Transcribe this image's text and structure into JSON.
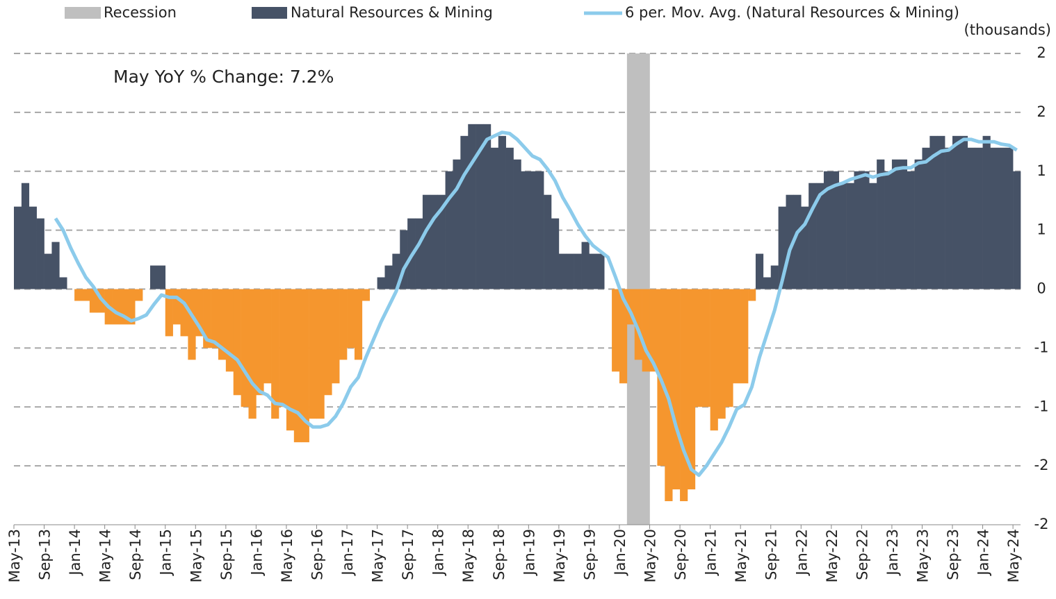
{
  "chart_data": {
    "type": "bar",
    "annotation": "May YoY % Change: 7.2%",
    "unit_label": "(thousands)",
    "categories": [
      "May-13",
      null,
      null,
      null,
      "Sep-13",
      null,
      null,
      null,
      "Jan-14",
      null,
      null,
      null,
      "May-14",
      null,
      null,
      null,
      "Sep-14",
      null,
      null,
      null,
      "Jan-15",
      null,
      null,
      null,
      "May-15",
      null,
      null,
      null,
      "Sep-15",
      null,
      null,
      null,
      "Jan-16",
      null,
      null,
      null,
      "May-16",
      null,
      null,
      null,
      "Sep-16",
      null,
      null,
      null,
      "Jan-17",
      null,
      null,
      null,
      "May-17",
      null,
      null,
      null,
      "Sep-17",
      null,
      null,
      null,
      "Jan-18",
      null,
      null,
      null,
      "May-18",
      null,
      null,
      null,
      "Sep-18",
      null,
      null,
      null,
      "Jan-19",
      null,
      null,
      null,
      "May-19",
      null,
      null,
      null,
      "Sep-19",
      null,
      null,
      null,
      "Jan-20",
      null,
      null,
      null,
      "May-20",
      null,
      null,
      null,
      "Sep-20",
      null,
      null,
      null,
      "Jan-21",
      null,
      null,
      null,
      "May-21",
      null,
      null,
      null,
      "Sep-21",
      null,
      null,
      null,
      "Jan-22",
      null,
      null,
      null,
      "May-22",
      null,
      null,
      null,
      "Sep-22",
      null,
      null,
      null,
      "Jan-23",
      null,
      null,
      null,
      "May-23",
      null,
      null,
      null,
      "Sep-23",
      null,
      null,
      null,
      "Jan-24",
      null,
      null,
      null,
      "May-24"
    ],
    "recession": {
      "name": "Recession",
      "color": "#bfbfbf",
      "values": [
        0,
        0,
        0,
        0,
        0,
        0,
        0,
        0,
        0,
        0,
        0,
        0,
        0,
        0,
        0,
        0,
        0,
        0,
        0,
        0,
        0,
        0,
        0,
        0,
        0,
        0,
        0,
        0,
        0,
        0,
        0,
        0,
        0,
        0,
        0,
        0,
        0,
        0,
        0,
        0,
        0,
        0,
        0,
        0,
        0,
        0,
        0,
        0,
        0,
        0,
        0,
        0,
        0,
        0,
        0,
        0,
        0,
        0,
        0,
        0,
        0,
        0,
        0,
        0,
        0,
        0,
        0,
        0,
        0,
        0,
        0,
        0,
        0,
        0,
        0,
        0,
        0,
        0,
        0,
        0,
        0,
        1,
        1,
        1,
        0,
        0,
        0,
        0,
        0,
        0,
        0,
        0,
        0,
        0,
        0,
        0,
        0,
        0,
        0,
        0,
        0,
        0,
        0,
        0,
        0,
        0,
        0,
        0,
        0,
        0,
        0,
        0,
        0,
        0,
        0,
        0,
        0,
        0,
        0,
        0,
        0,
        0,
        0,
        0,
        0,
        0,
        0,
        0,
        0,
        0,
        0,
        0,
        0
      ]
    },
    "series": [
      {
        "name": "Natural Resources & Mining",
        "color": "#465266",
        "negative_color": "#f5962e",
        "type": "bar",
        "values": [
          0.7,
          0.9,
          0.7,
          0.6,
          0.3,
          0.4,
          0.1,
          0,
          -0.1,
          -0.1,
          -0.2,
          -0.2,
          -0.3,
          -0.3,
          -0.3,
          -0.3,
          -0.1,
          0,
          0.2,
          0.2,
          -0.4,
          -0.3,
          -0.4,
          -0.6,
          -0.4,
          -0.5,
          -0.5,
          -0.6,
          -0.7,
          -0.9,
          -1.0,
          -1.1,
          -0.9,
          -0.8,
          -1.1,
          -1.0,
          -1.2,
          -1.3,
          -1.3,
          -1.1,
          -1.1,
          -0.9,
          -0.8,
          -0.6,
          -0.5,
          -0.6,
          -0.1,
          0,
          0.1,
          0.2,
          0.3,
          0.5,
          0.6,
          0.6,
          0.8,
          0.8,
          0.8,
          1.0,
          1.1,
          1.3,
          1.4,
          1.4,
          1.4,
          1.2,
          1.3,
          1.2,
          1.1,
          1.0,
          1.0,
          1.0,
          0.8,
          0.6,
          0.3,
          0.3,
          0.3,
          0.4,
          0.3,
          0.3,
          0,
          -0.7,
          -0.8,
          -0.3,
          -0.6,
          -0.7,
          -0.7,
          -1.5,
          -1.8,
          -1.7,
          -1.8,
          -1.7,
          -1.0,
          -1.0,
          -1.2,
          -1.1,
          -1.0,
          -0.8,
          -0.8,
          -0.1,
          0.3,
          0.1,
          0.2,
          0.7,
          0.8,
          0.8,
          0.7,
          0.9,
          0.9,
          1.0,
          1.0,
          0.9,
          0.9,
          1.0,
          1.0,
          0.9,
          1.1,
          1.0,
          1.1,
          1.1,
          1.0,
          1.1,
          1.2,
          1.3,
          1.3,
          1.2,
          1.3,
          1.3,
          1.2,
          1.2,
          1.3,
          1.2,
          1.2,
          1.2,
          1.0
        ]
      },
      {
        "name": "6 per. Mov. Avg. (Natural Resources & Mining)",
        "color": "#8ccbeb",
        "type": "line",
        "values": [
          null,
          null,
          null,
          null,
          null,
          0.6,
          0.5,
          0.35,
          0.22,
          0.1,
          0.02,
          -0.08,
          -0.15,
          -0.2,
          -0.23,
          -0.27,
          -0.25,
          -0.22,
          -0.13,
          -0.05,
          -0.07,
          -0.07,
          -0.12,
          -0.22,
          -0.32,
          -0.43,
          -0.45,
          -0.5,
          -0.55,
          -0.6,
          -0.7,
          -0.8,
          -0.87,
          -0.9,
          -0.97,
          -0.98,
          -1.02,
          -1.05,
          -1.12,
          -1.17,
          -1.17,
          -1.15,
          -1.08,
          -0.97,
          -0.83,
          -0.75,
          -0.58,
          -0.43,
          -0.28,
          -0.15,
          -0.02,
          0.17,
          0.28,
          0.38,
          0.5,
          0.6,
          0.68,
          0.77,
          0.85,
          0.97,
          1.07,
          1.17,
          1.27,
          1.3,
          1.33,
          1.32,
          1.27,
          1.2,
          1.13,
          1.1,
          1.02,
          0.92,
          0.78,
          0.67,
          0.55,
          0.45,
          0.37,
          0.32,
          0.27,
          0.1,
          -0.08,
          -0.2,
          -0.35,
          -0.52,
          -0.63,
          -0.77,
          -0.93,
          -1.17,
          -1.37,
          -1.53,
          -1.58,
          -1.5,
          -1.4,
          -1.3,
          -1.17,
          -1.02,
          -0.98,
          -0.83,
          -0.58,
          -0.38,
          -0.18,
          0.07,
          0.33,
          0.48,
          0.55,
          0.68,
          0.8,
          0.85,
          0.88,
          0.9,
          0.93,
          0.95,
          0.97,
          0.95,
          0.97,
          0.98,
          1.02,
          1.03,
          1.03,
          1.07,
          1.08,
          1.13,
          1.17,
          1.18,
          1.23,
          1.27,
          1.27,
          1.25,
          1.25,
          1.25,
          1.23,
          1.22,
          1.18
        ]
      }
    ],
    "ylim": [
      -2,
      2
    ],
    "yticks": [
      2,
      {
        "value": 1.5,
        "label": "2"
      },
      1,
      {
        "value": 0.5,
        "label": "1"
      },
      0,
      {
        "value": -0.5,
        "label": "-1"
      },
      -1,
      {
        "value": -1.5,
        "label": "-2"
      },
      -2
    ],
    "grid": true
  }
}
